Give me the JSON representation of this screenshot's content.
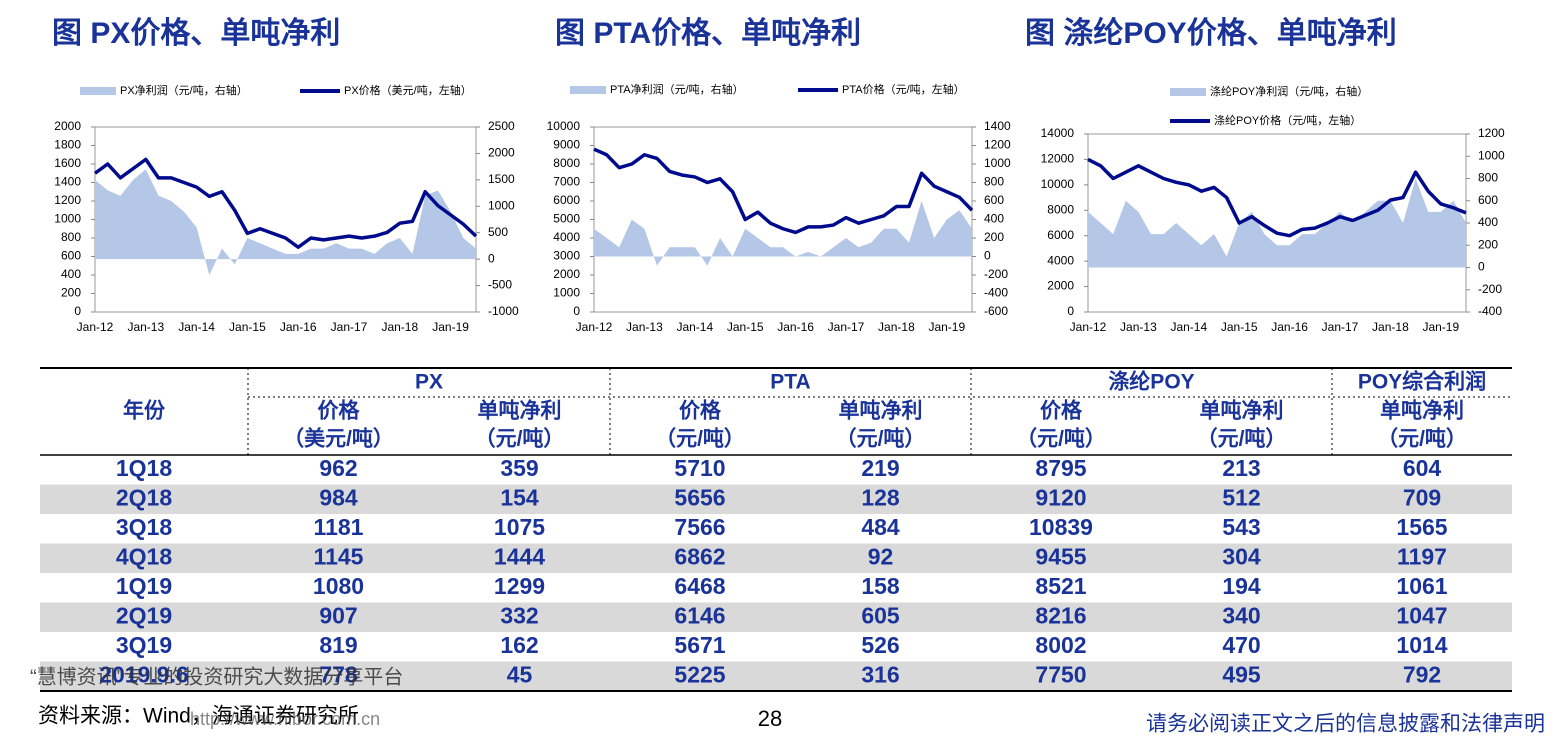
{
  "chart_data": [
    {
      "type": "line",
      "title": "图 PX价格、单吨净利",
      "categories": [
        "Jan-12",
        null,
        null,
        null,
        "Jan-13",
        null,
        null,
        null,
        "Jan-14",
        null,
        null,
        null,
        "Jan-15",
        null,
        null,
        null,
        "Jan-16",
        null,
        null,
        null,
        "Jan-17",
        null,
        null,
        null,
        "Jan-18",
        null,
        null,
        null,
        "Jan-19",
        null,
        null
      ],
      "series": [
        {
          "name": "PX净利润（元/吨，右轴）",
          "kind": "area",
          "axis": "y2",
          "color": "#b4c7e7",
          "values": [
            1500,
            1300,
            1200,
            1500,
            1700,
            1200,
            1100,
            900,
            600,
            -300,
            200,
            -100,
            400,
            300,
            200,
            100,
            100,
            200,
            200,
            300,
            200,
            200,
            100,
            300,
            400,
            100,
            1200,
            1300,
            900,
            400,
            200
          ]
        },
        {
          "name": "PX价格（美元/吨，左轴）",
          "kind": "line",
          "axis": "y",
          "color": "#000a8c",
          "values": [
            1500,
            1600,
            1450,
            1550,
            1650,
            1450,
            1450,
            1400,
            1350,
            1250,
            1300,
            1100,
            850,
            900,
            850,
            800,
            700,
            800,
            780,
            800,
            820,
            800,
            820,
            860,
            960,
            980,
            1300,
            1150,
            1050,
            950,
            820
          ]
        }
      ],
      "ylim": [
        0,
        2000
      ],
      "yticks": [
        0,
        200,
        400,
        600,
        800,
        1000,
        1200,
        1400,
        1600,
        1800,
        2000
      ],
      "y2lim": [
        -1000,
        2500
      ],
      "y2ticks": [
        -1000,
        -500,
        0,
        500,
        1000,
        1500,
        2000,
        2500
      ]
    },
    {
      "type": "line",
      "title": "图 PTA价格、单吨净利",
      "categories": [
        "Jan-12",
        null,
        null,
        null,
        "Jan-13",
        null,
        null,
        null,
        "Jan-14",
        null,
        null,
        null,
        "Jan-15",
        null,
        null,
        null,
        "Jan-16",
        null,
        null,
        null,
        "Jan-17",
        null,
        null,
        null,
        "Jan-18",
        null,
        null,
        null,
        "Jan-19",
        null,
        null
      ],
      "series": [
        {
          "name": "PTA净利润（元/吨，右轴）",
          "kind": "area",
          "axis": "y2",
          "color": "#b4c7e7",
          "values": [
            300,
            200,
            100,
            400,
            300,
            -100,
            100,
            100,
            100,
            -100,
            200,
            0,
            300,
            200,
            100,
            100,
            0,
            50,
            0,
            100,
            200,
            100,
            150,
            300,
            300,
            150,
            600,
            200,
            400,
            500,
            300
          ]
        },
        {
          "name": "PTA价格（元/吨，左轴）",
          "kind": "line",
          "axis": "y",
          "color": "#000a8c",
          "values": [
            8800,
            8500,
            7800,
            8000,
            8500,
            8300,
            7600,
            7400,
            7300,
            7000,
            7200,
            6500,
            5000,
            5400,
            4800,
            4500,
            4300,
            4600,
            4600,
            4700,
            5100,
            4800,
            5000,
            5200,
            5700,
            5700,
            7500,
            6800,
            6500,
            6200,
            5500
          ]
        }
      ],
      "ylim": [
        0,
        10000
      ],
      "yticks": [
        0,
        1000,
        2000,
        3000,
        4000,
        5000,
        6000,
        7000,
        8000,
        9000,
        10000
      ],
      "y2lim": [
        -600,
        1400
      ],
      "y2ticks": [
        -600,
        -400,
        -200,
        0,
        200,
        400,
        600,
        800,
        1000,
        1200,
        1400
      ]
    },
    {
      "type": "line",
      "title": "图 涤纶POY价格、单吨净利",
      "categories": [
        "Jan-12",
        null,
        null,
        null,
        "Jan-13",
        null,
        null,
        null,
        "Jan-14",
        null,
        null,
        null,
        "Jan-15",
        null,
        null,
        null,
        "Jan-16",
        null,
        null,
        null,
        "Jan-17",
        null,
        null,
        null,
        "Jan-18",
        null,
        null,
        null,
        "Jan-19",
        null,
        null
      ],
      "series": [
        {
          "name": "涤纶POY净利润（元/吨，右轴）",
          "kind": "area",
          "axis": "y2",
          "color": "#b4c7e7",
          "values": [
            500,
            400,
            300,
            600,
            500,
            300,
            300,
            400,
            300,
            200,
            300,
            100,
            400,
            500,
            300,
            200,
            200,
            300,
            300,
            400,
            500,
            400,
            500,
            600,
            600,
            400,
            800,
            500,
            500,
            600,
            400
          ]
        },
        {
          "name": "涤纶POY价格（元/吨，左轴）",
          "kind": "line",
          "axis": "y",
          "color": "#000a8c",
          "values": [
            12000,
            11500,
            10500,
            11000,
            11500,
            11000,
            10500,
            10200,
            10000,
            9500,
            9800,
            9000,
            7000,
            7500,
            6800,
            6200,
            6000,
            6500,
            6600,
            7000,
            7500,
            7200,
            7600,
            8000,
            8800,
            9000,
            11000,
            9500,
            8500,
            8200,
            7800
          ]
        }
      ],
      "ylim": [
        0,
        14000
      ],
      "yticks": [
        0,
        2000,
        4000,
        6000,
        8000,
        10000,
        12000,
        14000
      ],
      "y2lim": [
        -400,
        1200
      ],
      "y2ticks": [
        -400,
        -200,
        0,
        200,
        400,
        600,
        800,
        1000,
        1200
      ]
    }
  ],
  "table": {
    "year_header": "年份",
    "groups": [
      "PX",
      "PTA",
      "涤纶POY",
      "POY综合利润"
    ],
    "subheaders": [
      [
        "价格",
        "（美元/吨）"
      ],
      [
        "单吨净利",
        "（元/吨）"
      ],
      [
        "价格",
        "（元/吨）"
      ],
      [
        "单吨净利",
        "（元/吨）"
      ],
      [
        "价格",
        "（元/吨）"
      ],
      [
        "单吨净利",
        "（元/吨）"
      ],
      [
        "单吨净利",
        "（元/吨）"
      ]
    ],
    "rows": [
      [
        "1Q18",
        962,
        359,
        5710,
        219,
        8795,
        213,
        604
      ],
      [
        "2Q18",
        984,
        154,
        5656,
        128,
        9120,
        512,
        709
      ],
      [
        "3Q18",
        1181,
        1075,
        7566,
        484,
        10839,
        543,
        1565
      ],
      [
        "4Q18",
        1145,
        1444,
        6862,
        92,
        9455,
        304,
        1197
      ],
      [
        "1Q19",
        1080,
        1299,
        6468,
        158,
        8521,
        194,
        1061
      ],
      [
        "2Q19",
        907,
        332,
        6146,
        605,
        8216,
        340,
        1047
      ],
      [
        "3Q19",
        819,
        162,
        5671,
        526,
        8002,
        470,
        1014
      ],
      [
        "2019.9.6",
        778,
        45,
        5225,
        316,
        7750,
        495,
        792
      ]
    ]
  },
  "footer": {
    "source": "资料来源：Wind，海通证券研究所",
    "page": "28",
    "disclaimer": "请务必阅读正文之后的信息披露和法律声明",
    "watermark": "“慧博资讯”专业的投资研究大数据分享平台",
    "url": "http://www.hibor.com.cn"
  }
}
